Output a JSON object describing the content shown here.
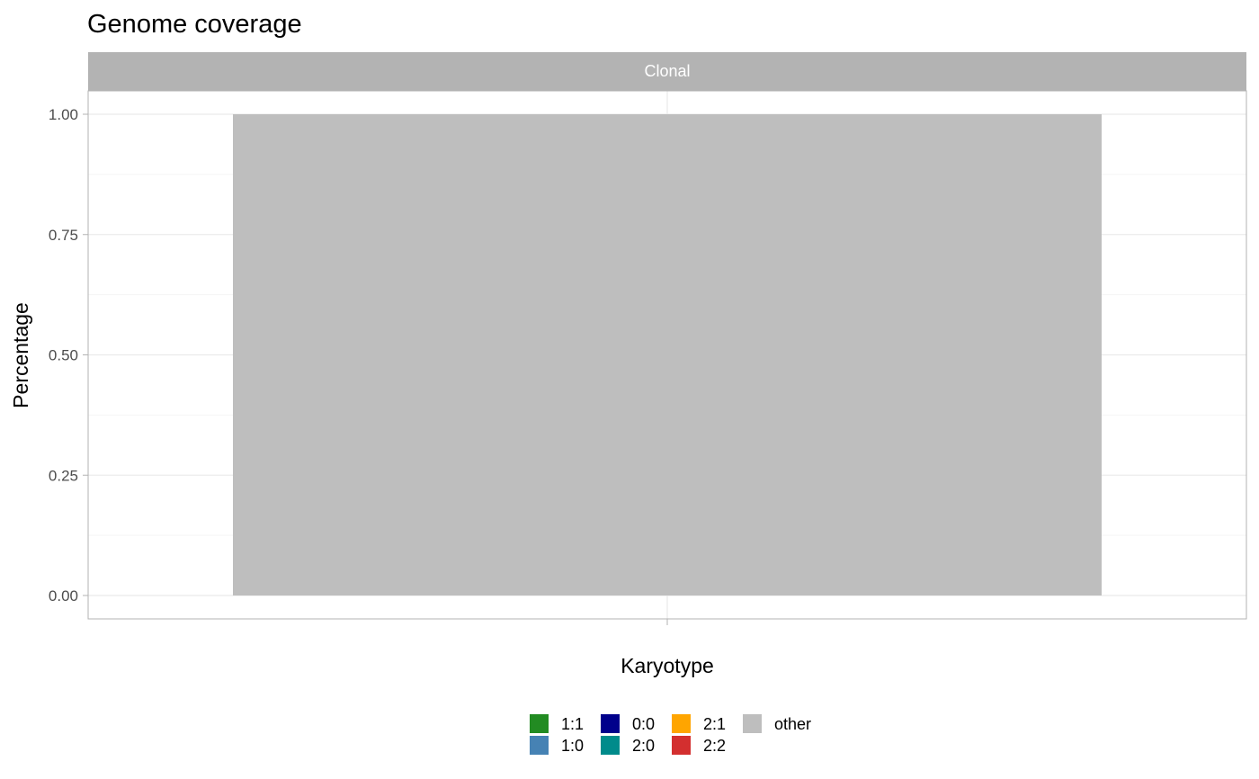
{
  "chart_data": {
    "type": "bar",
    "title": "Genome coverage",
    "facet": "Clonal",
    "xlabel": "Karyotype",
    "ylabel": "Percentage",
    "categories": [
      ""
    ],
    "series": [
      {
        "name": "other",
        "values": [
          1.0
        ]
      }
    ],
    "ylim": [
      -0.05,
      1.05
    ],
    "yticks": [
      "0.00",
      "0.25",
      "0.50",
      "0.75",
      "1.00"
    ],
    "ytick_values": [
      0,
      0.25,
      0.5,
      0.75,
      1.0
    ],
    "grid": true,
    "legend": {
      "position": "bottom",
      "items": [
        {
          "label": "1:1",
          "color": "#228b22"
        },
        {
          "label": "1:0",
          "color": "#4682b4"
        },
        {
          "label": "0:0",
          "color": "#00008b"
        },
        {
          "label": "2:0",
          "color": "#008b8b"
        },
        {
          "label": "2:1",
          "color": "#ffa500"
        },
        {
          "label": "2:2",
          "color": "#d32f2f"
        },
        {
          "label": "other",
          "color": "#bebebe"
        }
      ]
    },
    "colors": {
      "strip_bg": "#b3b3b3",
      "grid_major": "#ebebeb",
      "grid_minor": "#f5f5f5",
      "panel_border": "#b3b3b3"
    }
  }
}
